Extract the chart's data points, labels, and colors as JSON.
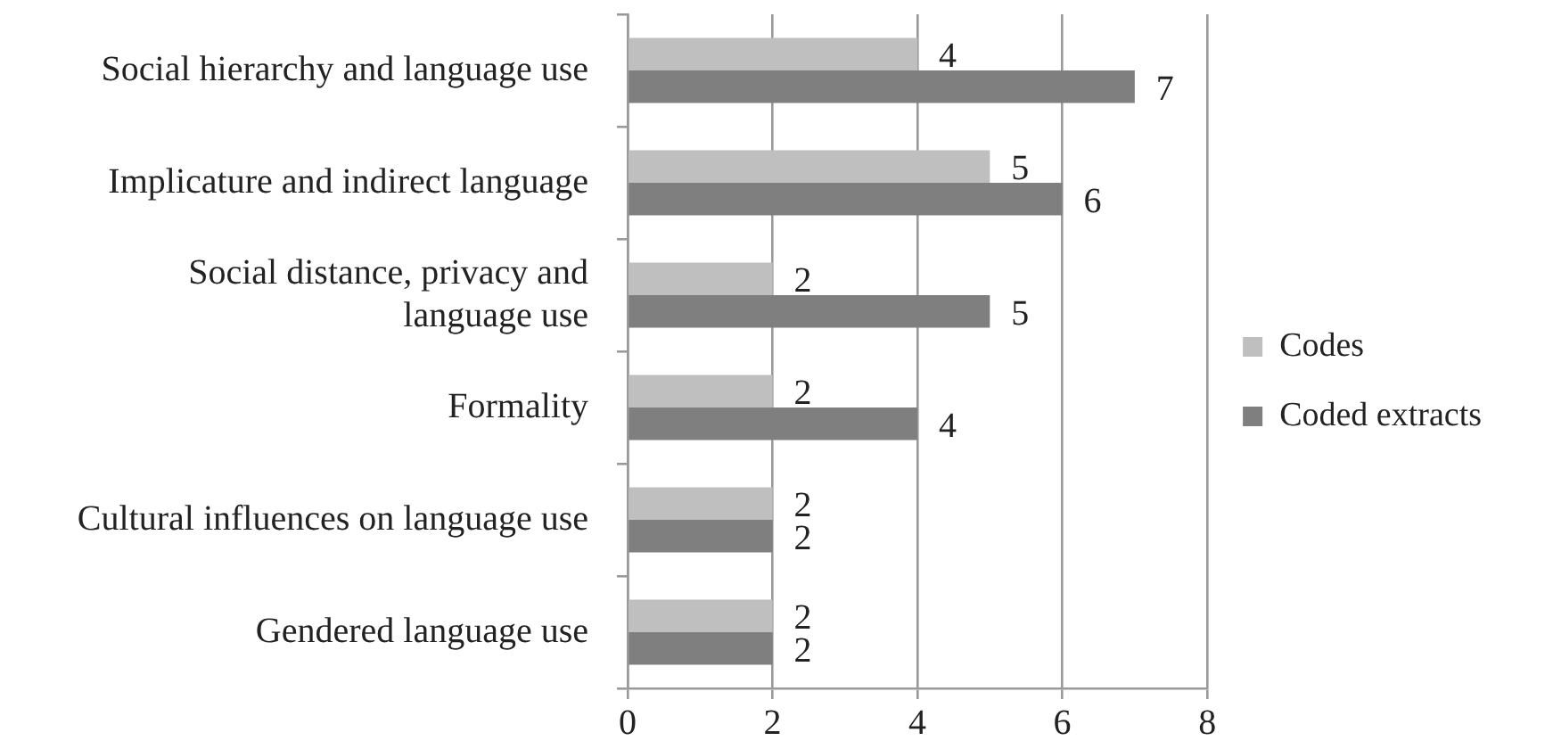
{
  "chart_data": {
    "type": "bar",
    "orientation": "horizontal",
    "categories": [
      "Social hierarchy and language use",
      "Implicature and indirect language",
      "Social distance, privacy and language use",
      "Formality",
      "Cultural influences on language use",
      "Gendered language use"
    ],
    "series": [
      {
        "name": "Codes",
        "color": "#bfbfbf",
        "values": [
          4,
          5,
          2,
          2,
          2,
          2
        ]
      },
      {
        "name": "Coded extracts",
        "color": "#7f7f80",
        "values": [
          7,
          6,
          5,
          4,
          2,
          2
        ]
      }
    ],
    "xlim": [
      0,
      8
    ],
    "xticks": [
      0,
      2,
      4,
      6,
      8
    ],
    "grid": "x",
    "legend": "right",
    "data_labels": true
  }
}
